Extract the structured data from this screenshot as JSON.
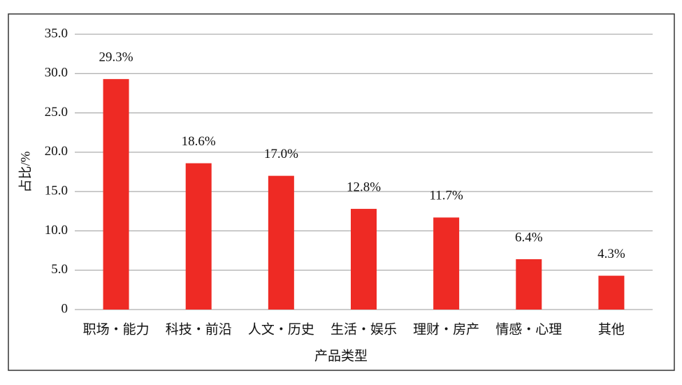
{
  "chart_data": {
    "type": "bar",
    "x_label": "产品类型",
    "y_label": "占比/%",
    "categories": [
      "职场・能力",
      "科技・前沿",
      "人文・历史",
      "生活・娱乐",
      "理财・房产",
      "情感・心理",
      "其他"
    ],
    "values": [
      29.3,
      18.6,
      17.0,
      12.8,
      11.7,
      6.4,
      4.3
    ],
    "value_labels": [
      "29.3%",
      "18.6%",
      "17.0%",
      "12.8%",
      "11.7%",
      "6.4%",
      "4.3%"
    ],
    "color": "#ee2a24",
    "ylim": [
      0,
      35
    ],
    "yticks": [
      0,
      {
        "value": 5,
        "label": "5.0"
      },
      {
        "value": 10,
        "label": "10.0"
      },
      {
        "value": 15,
        "label": "15.0"
      },
      {
        "value": 20,
        "label": "20.0"
      },
      {
        "value": 25,
        "label": "25.0"
      },
      {
        "value": 30,
        "label": "30.0"
      },
      {
        "value": 35,
        "label": "35.0"
      }
    ],
    "grid": true
  }
}
